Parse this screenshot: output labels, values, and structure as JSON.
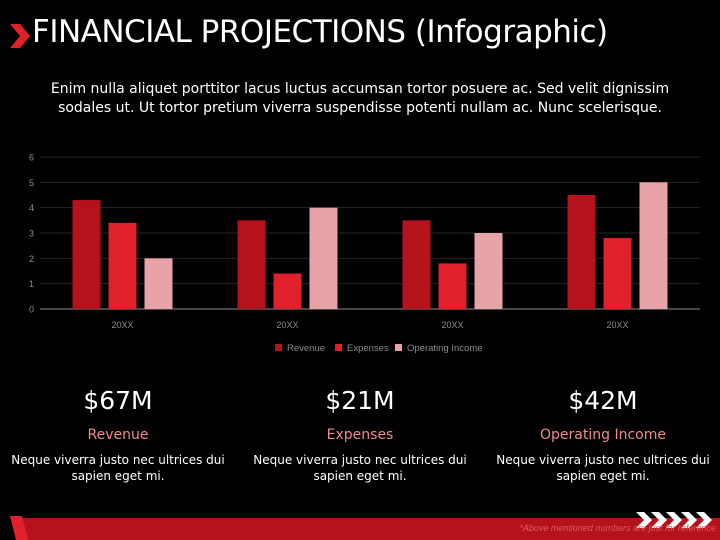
{
  "title": "FINANCIAL PROJECTIONS (Infographic)",
  "intro": "Enim nulla aliquet porttitor lacus luctus accumsan tortor posuere ac. Sed velit dignissim sodales ut. Ut tortor pretium viverra suspendisse potenti nullam ac. Nunc scelerisque.",
  "colors": {
    "background": "#000000",
    "revenue": "#b5121b",
    "expenses": "#e0202a",
    "operating_income": "#e8a3a8",
    "accent": "#e0202a"
  },
  "chart_data": {
    "type": "bar",
    "categories": [
      "20XX",
      "20XX",
      "20XX",
      "20XX"
    ],
    "series": [
      {
        "name": "Revenue",
        "values": [
          4.3,
          3.5,
          3.5,
          4.5
        ]
      },
      {
        "name": "Expenses",
        "values": [
          3.4,
          1.4,
          1.8,
          2.8
        ]
      },
      {
        "name": "Operating Income",
        "values": [
          2.0,
          4.0,
          3.0,
          5.0
        ]
      }
    ],
    "ylim": [
      0,
      6
    ],
    "yticks": [
      "0",
      "1",
      "2",
      "3",
      "4",
      "5",
      "6"
    ],
    "grid": true,
    "legend_position": "bottom"
  },
  "stats": [
    {
      "value": "$67M",
      "label": "Revenue",
      "desc": "Neque viverra justo nec ultrices dui sapien eget mi."
    },
    {
      "value": "$21M",
      "label": "Expenses",
      "desc": "Neque viverra justo nec ultrices dui sapien eget mi."
    },
    {
      "value": "$42M",
      "label": "Operating Income",
      "desc": "Neque viverra justo nec ultrices dui sapien eget mi."
    }
  ],
  "footer_note": "*Above mentioned numbers are just for reference"
}
